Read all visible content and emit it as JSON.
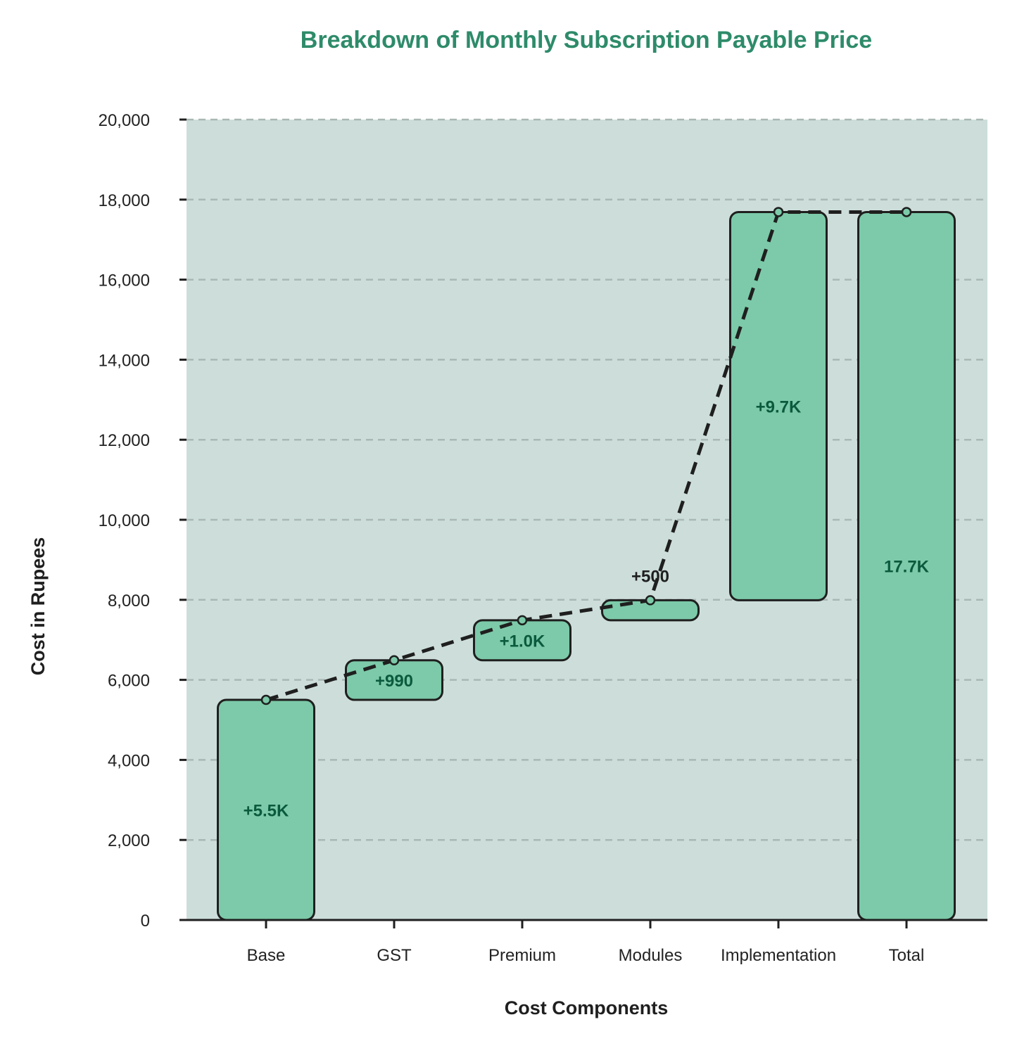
{
  "chart_data": {
    "type": "waterfall",
    "title": "Breakdown of Monthly Subscription Payable Price",
    "xlabel": "Cost Components",
    "ylabel": "Cost in Rupees",
    "ylim": [
      0,
      20000
    ],
    "yticks": [
      0,
      2000,
      4000,
      6000,
      8000,
      10000,
      12000,
      14000,
      16000,
      18000,
      20000
    ],
    "ytick_labels": [
      "0",
      "2,000",
      "4,000",
      "6,000",
      "8,000",
      "10,000",
      "12,000",
      "14,000",
      "16,000",
      "18,000",
      "20,000"
    ],
    "grid": true,
    "categories": [
      "Base",
      "GST",
      "Premium",
      "Modules",
      "Implementation",
      "Total"
    ],
    "values": [
      5500,
      990,
      1000,
      500,
      9700,
      17690
    ],
    "bars": [
      {
        "category": "Base",
        "start": 0,
        "end": 5500,
        "label": "+5.5K"
      },
      {
        "category": "GST",
        "start": 5500,
        "end": 6490,
        "label": "+990"
      },
      {
        "category": "Premium",
        "start": 6490,
        "end": 7490,
        "label": "+1.0K"
      },
      {
        "category": "Modules",
        "start": 7490,
        "end": 7990,
        "label": "+500"
      },
      {
        "category": "Implementation",
        "start": 7990,
        "end": 17690,
        "label": "+9.7K"
      },
      {
        "category": "Total",
        "start": 0,
        "end": 17690,
        "label": "17.7K"
      }
    ],
    "colors": {
      "title": "#2e8b6a",
      "plot_background": "#cddeda",
      "bar_fill": "#7ccaa9",
      "bar_stroke": "#1f1f1f",
      "bar_label": "#0b5a3e",
      "connector": "#1f1f1f",
      "grid": "#a9b8b4",
      "outside_label": "#1f1f1f"
    }
  }
}
